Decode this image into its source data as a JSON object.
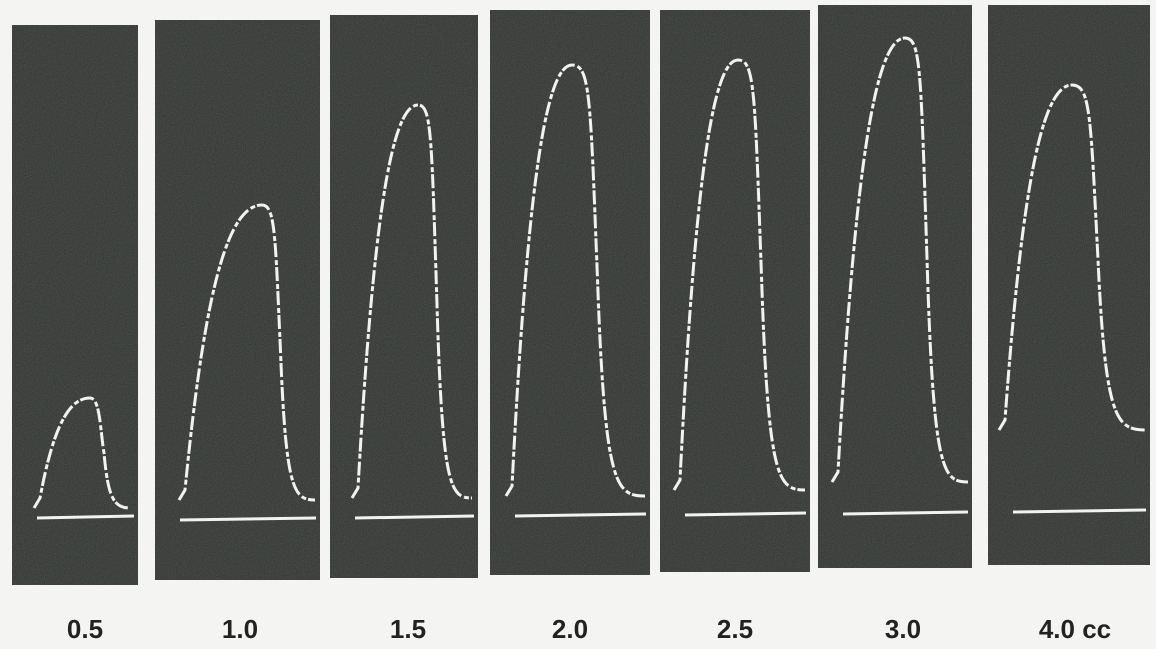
{
  "panels": [
    {
      "label": "0.5"
    },
    {
      "label": "1.0"
    },
    {
      "label": "1.5"
    },
    {
      "label": "2.0"
    },
    {
      "label": "2.5"
    },
    {
      "label": "3.0"
    },
    {
      "label": "4.0 cc"
    }
  ]
}
